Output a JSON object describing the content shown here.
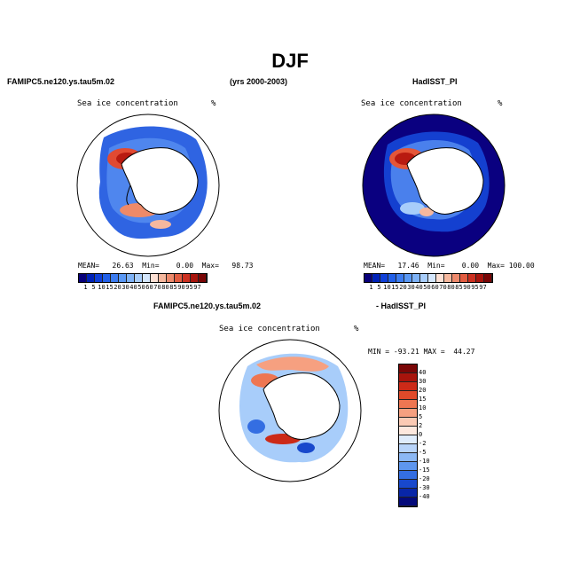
{
  "figure": {
    "title": "DJF",
    "left_model": "FAMIPC5.ne120.ys.tau5m.02",
    "years": "(yrs 2000-2003)",
    "right_model": "HadISST_PI",
    "diff_model": "FAMIPC5.ne120.ys.tau5m.02",
    "diff_ref": "- HadISST_PI"
  },
  "panels": {
    "left": {
      "variable": "Sea ice concentration",
      "units": "%",
      "stats": "MEAN=   26.63  Min=    0.00  Max=   98.73"
    },
    "right": {
      "variable": "Sea ice concentration",
      "units": "%",
      "stats": "MEAN=   17.46  Min=    0.00  Max= 100.00"
    },
    "diff": {
      "variable": "Sea ice concentration",
      "units": "%",
      "stats": "MIN = -93.21 MAX =  44.27"
    }
  },
  "colorbars": {
    "abs_labels": [
      "1",
      "5",
      "10",
      "15",
      "20",
      "30",
      "40",
      "50",
      "60",
      "70",
      "80",
      "85",
      "90",
      "95",
      "97"
    ],
    "abs_colors": [
      "#08007a",
      "#0022b8",
      "#1040d8",
      "#2260e8",
      "#3c7cf0",
      "#5a98f4",
      "#7eb2f6",
      "#a8cdfa",
      "#d4e6fc",
      "#fde0d4",
      "#f6b89e",
      "#ee8a6c",
      "#e25c40",
      "#cc3020",
      "#a8140c",
      "#7a0606"
    ],
    "diff_labels": [
      "40",
      "30",
      "20",
      "15",
      "10",
      "5",
      "2",
      "0",
      "-2",
      "-5",
      "-10",
      "-15",
      "-20",
      "-30",
      "-40"
    ],
    "diff_colors": [
      "#7a0606",
      "#a8140c",
      "#cc2a18",
      "#e04a2a",
      "#ee7652",
      "#f6a080",
      "#fbcab4",
      "#fde8de",
      "#dfecfc",
      "#b8d4fa",
      "#8cb8f4",
      "#5e96ee",
      "#346ee2",
      "#1848cc",
      "#0826a8",
      "#040a7a"
    ]
  }
}
